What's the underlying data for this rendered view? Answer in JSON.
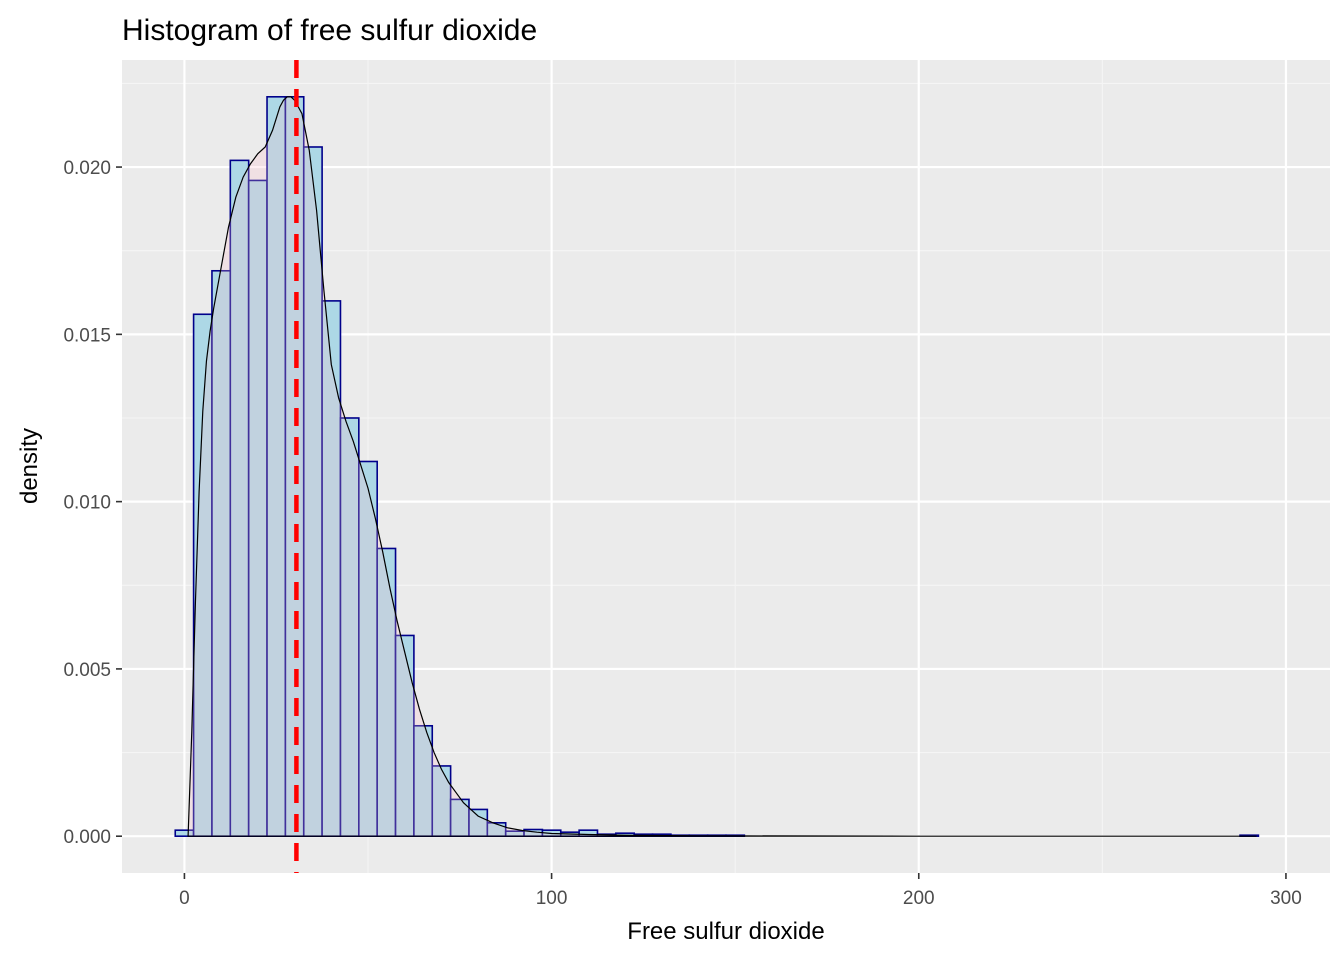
{
  "chart_data": {
    "type": "histogram",
    "title": "Histogram of free sulfur dioxide",
    "xlabel": "Free sulfur dioxide",
    "ylabel": "density",
    "xlim": [
      -17,
      312
    ],
    "ylim": [
      -0.0011,
      0.0232
    ],
    "x_ticks": [
      0,
      100,
      200,
      300
    ],
    "x_tick_labels": [
      "0",
      "100",
      "200",
      "300"
    ],
    "y_ticks": [
      0.0,
      0.005,
      0.01,
      0.015,
      0.02
    ],
    "y_tick_labels": [
      "0.000",
      "0.005",
      "0.010",
      "0.015",
      "0.020"
    ],
    "grid": true,
    "bin_width": 5,
    "bins": [
      {
        "start": -2.5,
        "value": 0.00018
      },
      {
        "start": 2.5,
        "value": 0.0156
      },
      {
        "start": 7.5,
        "value": 0.0169
      },
      {
        "start": 12.5,
        "value": 0.0202
      },
      {
        "start": 17.5,
        "value": 0.0196
      },
      {
        "start": 22.5,
        "value": 0.0221
      },
      {
        "start": 27.5,
        "value": 0.0221
      },
      {
        "start": 32.5,
        "value": 0.0206
      },
      {
        "start": 37.5,
        "value": 0.016
      },
      {
        "start": 42.5,
        "value": 0.0125
      },
      {
        "start": 47.5,
        "value": 0.0112
      },
      {
        "start": 52.5,
        "value": 0.0086
      },
      {
        "start": 57.5,
        "value": 0.006
      },
      {
        "start": 62.5,
        "value": 0.0033
      },
      {
        "start": 67.5,
        "value": 0.0021
      },
      {
        "start": 72.5,
        "value": 0.0011
      },
      {
        "start": 77.5,
        "value": 0.0008
      },
      {
        "start": 82.5,
        "value": 0.0004
      },
      {
        "start": 87.5,
        "value": 0.00015
      },
      {
        "start": 92.5,
        "value": 0.0002
      },
      {
        "start": 97.5,
        "value": 0.00018
      },
      {
        "start": 102.5,
        "value": 0.00012
      },
      {
        "start": 107.5,
        "value": 0.00018
      },
      {
        "start": 112.5,
        "value": 6e-05
      },
      {
        "start": 117.5,
        "value": 9e-05
      },
      {
        "start": 122.5,
        "value": 6e-05
      },
      {
        "start": 127.5,
        "value": 6e-05
      },
      {
        "start": 132.5,
        "value": 3e-05
      },
      {
        "start": 137.5,
        "value": 3e-05
      },
      {
        "start": 142.5,
        "value": 3e-05
      },
      {
        "start": 147.5,
        "value": 3e-05
      },
      {
        "start": 287.5,
        "value": 3e-05
      }
    ],
    "density_curve": {
      "x": [
        1,
        2,
        3,
        4,
        5,
        6,
        7,
        8,
        10,
        12,
        14,
        16,
        18,
        20,
        22,
        24,
        26,
        27,
        28,
        29,
        30,
        32,
        34,
        36,
        38,
        40,
        42,
        44,
        46,
        48,
        50,
        52,
        54,
        56,
        58,
        60,
        62,
        64,
        66,
        68,
        70,
        72,
        74,
        76,
        78,
        80,
        84,
        88,
        92,
        96,
        100,
        110,
        120,
        130,
        140,
        150,
        200,
        250,
        292
      ],
      "y": [
        0.0,
        0.0031,
        0.007,
        0.0103,
        0.0127,
        0.0142,
        0.0151,
        0.0158,
        0.017,
        0.0182,
        0.0191,
        0.0197,
        0.0201,
        0.0204,
        0.0206,
        0.0211,
        0.0218,
        0.022,
        0.0221,
        0.0221,
        0.022,
        0.0216,
        0.0205,
        0.0187,
        0.0163,
        0.0141,
        0.0131,
        0.0124,
        0.0118,
        0.0111,
        0.0104,
        0.0095,
        0.0085,
        0.0074,
        0.0064,
        0.0055,
        0.0046,
        0.0038,
        0.0031,
        0.0025,
        0.002,
        0.0016,
        0.0013,
        0.001,
        0.0008,
        0.0006,
        0.0004,
        0.00025,
        0.00017,
        0.00012,
        8e-05,
        5e-05,
        3e-05,
        2e-05,
        1e-05,
        1e-05,
        0.0,
        0.0,
        0.0
      ]
    },
    "mean_line": {
      "x": 30.5,
      "style": "dashed"
    },
    "colors": {
      "panel_background": "#ebebeb",
      "grid_major": "#ffffff",
      "grid_minor": "#f5f5f5",
      "bar_fill": "#add8e6",
      "bar_outline": "#00008b",
      "density_fill": "#ffc0cb",
      "density_outline": "#000000",
      "mean_line": "#ff0000",
      "tick_text": "#4d4d4d"
    }
  }
}
